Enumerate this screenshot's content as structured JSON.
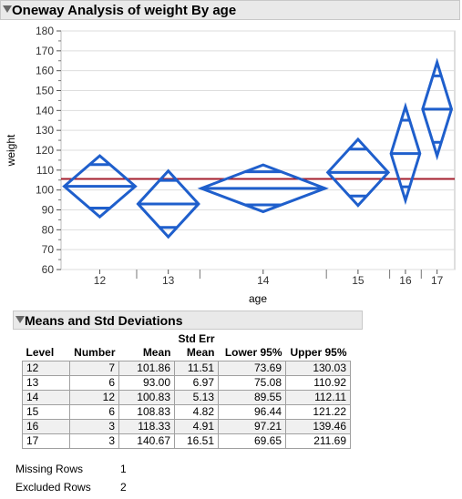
{
  "header": {
    "title": "Oneway Analysis of weight By age"
  },
  "chart_data": {
    "type": "means-diamonds",
    "xlabel": "age",
    "ylabel": "weight",
    "ylim": [
      60,
      180
    ],
    "yticks": [
      60,
      70,
      80,
      90,
      100,
      110,
      120,
      130,
      140,
      150,
      160,
      170,
      180
    ],
    "grand_mean": 105.6,
    "grid": true,
    "groups": [
      {
        "label": "12",
        "n": 7,
        "mean": 101.86,
        "lower95": 73.69,
        "upper95": 130.03,
        "ci_lower": 86.5,
        "ci_upper": 117.2,
        "sep_lower": 90.9,
        "sep_upper": 112.8
      },
      {
        "label": "13",
        "n": 6,
        "mean": 93.0,
        "lower95": 75.08,
        "upper95": 110.92,
        "ci_lower": 76.4,
        "ci_upper": 109.6,
        "sep_lower": 81.2,
        "sep_upper": 104.8
      },
      {
        "label": "14",
        "n": 12,
        "mean": 100.83,
        "lower95": 89.55,
        "upper95": 112.11,
        "ci_lower": 89.1,
        "ci_upper": 112.6,
        "sep_lower": 92.5,
        "sep_upper": 109.2
      },
      {
        "label": "15",
        "n": 6,
        "mean": 108.83,
        "lower95": 96.44,
        "upper95": 121.22,
        "ci_lower": 92.2,
        "ci_upper": 125.5,
        "sep_lower": 97.0,
        "sep_upper": 120.6
      },
      {
        "label": "16",
        "n": 3,
        "mean": 118.33,
        "lower95": 97.21,
        "upper95": 139.46,
        "ci_lower": 94.8,
        "ci_upper": 141.9,
        "sep_lower": 101.6,
        "sep_upper": 135.1
      },
      {
        "label": "17",
        "n": 3,
        "mean": 140.67,
        "lower95": 69.65,
        "upper95": 211.69,
        "ci_lower": 117.2,
        "ci_upper": 164.2,
        "sep_lower": 124.0,
        "sep_upper": 157.4
      }
    ],
    "colors": {
      "diamond": "#1f5fcc",
      "grand_mean": "#a31d2c",
      "grid": "#dddddd"
    }
  },
  "means_table": {
    "title": "Means and Std Deviations",
    "columns": [
      "Level",
      "Number",
      "Mean",
      "Std Err Mean",
      "Lower 95%",
      "Upper 95%"
    ],
    "col_std_err_top": "Std Err",
    "col_std_err_bottom": "Mean",
    "rows": [
      [
        "12",
        "7",
        "101.86",
        "11.51",
        "73.69",
        "130.03"
      ],
      [
        "13",
        "6",
        "93.00",
        "6.97",
        "75.08",
        "110.92"
      ],
      [
        "14",
        "12",
        "100.83",
        "5.13",
        "89.55",
        "112.11"
      ],
      [
        "15",
        "6",
        "108.83",
        "4.82",
        "96.44",
        "121.22"
      ],
      [
        "16",
        "3",
        "118.33",
        "4.91",
        "97.21",
        "139.46"
      ],
      [
        "17",
        "3",
        "140.67",
        "16.51",
        "69.65",
        "211.69"
      ]
    ]
  },
  "footer": [
    {
      "label": "Missing Rows",
      "value": "1"
    },
    {
      "label": "Excluded Rows",
      "value": "2"
    }
  ]
}
